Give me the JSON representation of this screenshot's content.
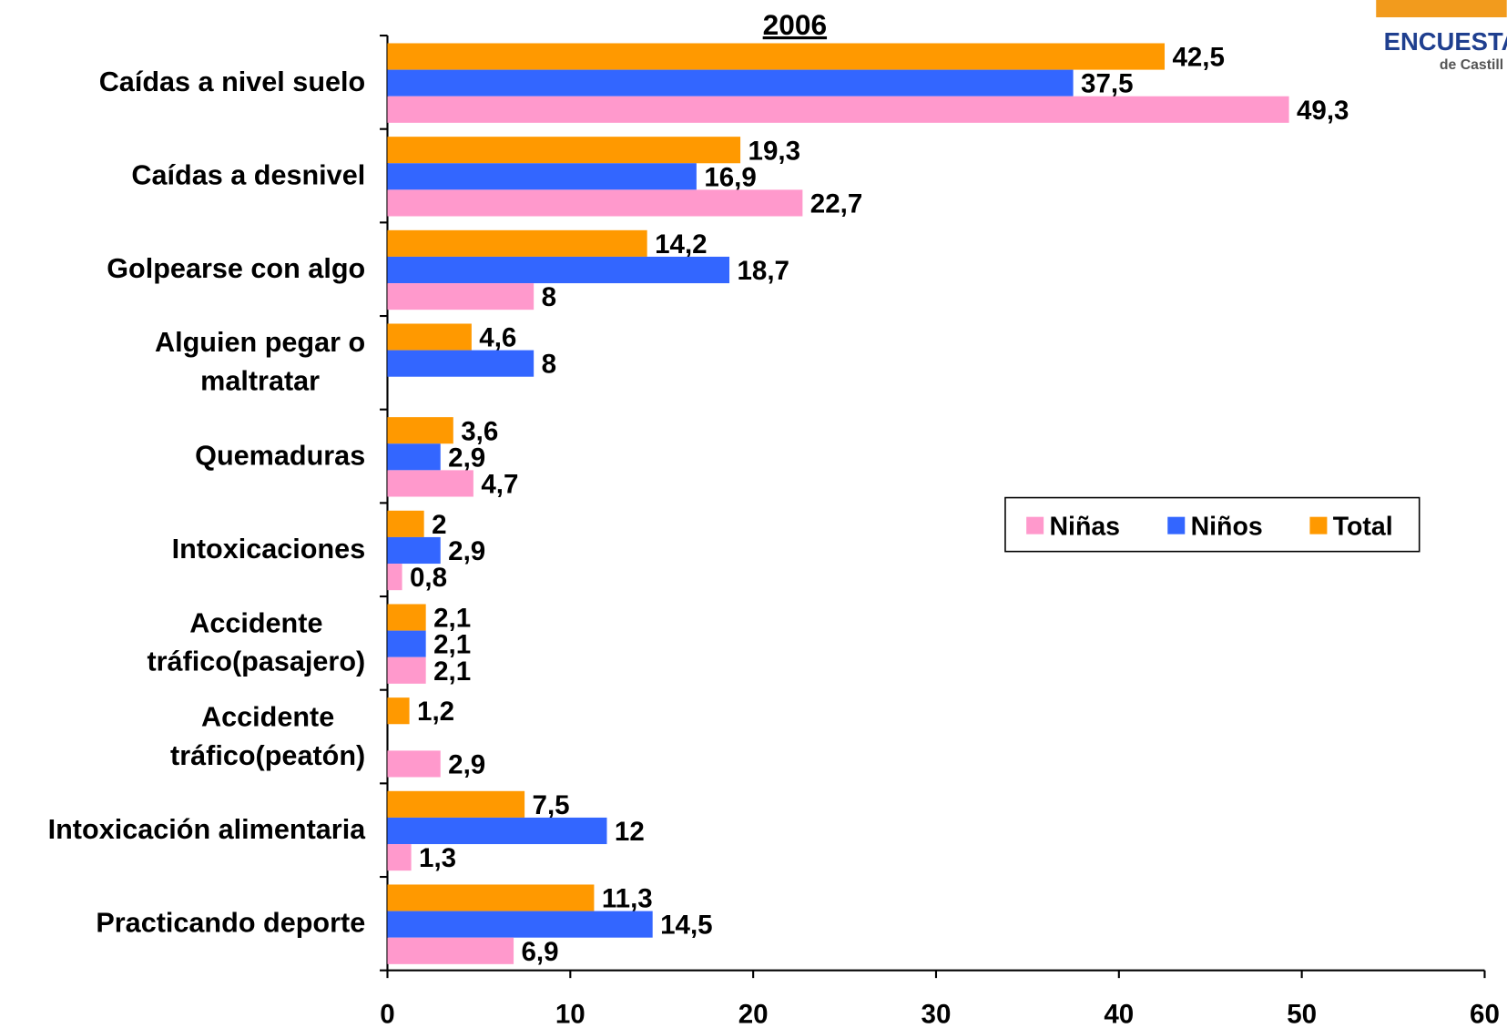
{
  "chart_data": {
    "type": "bar",
    "orientation": "horizontal",
    "title": "2006",
    "logo": {
      "text": "ENCUESTA D",
      "subtext": "de Castill"
    },
    "categories": [
      "Caídas a nivel suelo",
      "Caídas a desnivel",
      "Golpearse con algo",
      "Alguien pegar o\nmaltratar",
      "Quemaduras",
      "Intoxicaciones",
      "Accidente\ntráfico(pasajero)",
      "Accidente\ntráfico(peatón)",
      "Intoxicación alimentaria",
      "Practicando deporte"
    ],
    "series": [
      {
        "name": "Niñas",
        "color": "#ff99cc",
        "values": [
          49.3,
          22.7,
          8,
          null,
          4.7,
          0.8,
          2.1,
          2.9,
          1.3,
          6.9
        ],
        "value_labels": [
          "49,3",
          "22,7",
          "8",
          null,
          "4,7",
          "0,8",
          "2,1",
          "2,9",
          "1,3",
          "6,9"
        ]
      },
      {
        "name": "Niños",
        "color": "#3366ff",
        "values": [
          37.5,
          16.9,
          18.7,
          8,
          2.9,
          2.9,
          2.1,
          null,
          12,
          14.5
        ],
        "value_labels": [
          "37,5",
          "16,9",
          "18,7",
          "8",
          "2,9",
          "2,9",
          "2,1",
          null,
          "12",
          "14,5"
        ]
      },
      {
        "name": "Total",
        "color": "#ff9900",
        "values": [
          42.5,
          19.3,
          14.2,
          4.6,
          3.6,
          2,
          2.1,
          1.2,
          7.5,
          11.3
        ],
        "value_labels": [
          "42,5",
          "19,3",
          "14,2",
          "4,6",
          "3,6",
          "2",
          "2,1",
          "1,2",
          "7,5",
          "11,3"
        ]
      }
    ],
    "xlim": [
      0,
      60
    ],
    "xticks": [
      0,
      10,
      20,
      30,
      40,
      50,
      60
    ],
    "legend": "right"
  }
}
